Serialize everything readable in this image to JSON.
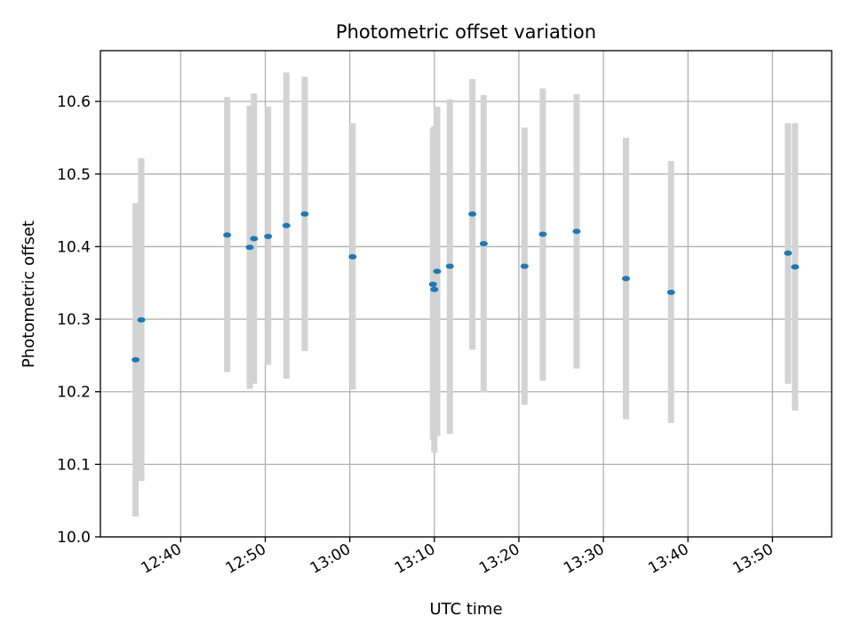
{
  "chart_data": {
    "type": "scatter",
    "title": "Photometric offset variation",
    "xlabel": "UTC time",
    "ylabel": "Photometric offset",
    "xlim": [
      "12:30:30",
      "13:57:00"
    ],
    "ylim": [
      10.0,
      10.67
    ],
    "x_ticks": [
      "12:40",
      "12:50",
      "13:00",
      "13:10",
      "13:20",
      "13:30",
      "13:40",
      "13:50"
    ],
    "y_ticks": [
      "10.0",
      "10.1",
      "10.2",
      "10.3",
      "10.4",
      "10.5",
      "10.6"
    ],
    "grid": true,
    "marker_color": "#1f77b4",
    "errorbar_color": "#d3d3d3",
    "points": [
      {
        "x": "12:34:40",
        "y": 10.244,
        "ylow": 10.028,
        "yhigh": 10.46
      },
      {
        "x": "12:35:20",
        "y": 10.299,
        "ylow": 10.077,
        "yhigh": 10.522
      },
      {
        "x": "12:45:30",
        "y": 10.416,
        "ylow": 10.227,
        "yhigh": 10.606
      },
      {
        "x": "12:48:10",
        "y": 10.399,
        "ylow": 10.204,
        "yhigh": 10.594
      },
      {
        "x": "12:48:40",
        "y": 10.411,
        "ylow": 10.211,
        "yhigh": 10.611
      },
      {
        "x": "12:50:20",
        "y": 10.414,
        "ylow": 10.237,
        "yhigh": 10.593
      },
      {
        "x": "12:52:30",
        "y": 10.429,
        "ylow": 10.218,
        "yhigh": 10.64
      },
      {
        "x": "12:54:40",
        "y": 10.445,
        "ylow": 10.256,
        "yhigh": 10.634
      },
      {
        "x": "13:00:20",
        "y": 10.386,
        "ylow": 10.203,
        "yhigh": 10.57
      },
      {
        "x": "13:09:50",
        "y": 10.348,
        "ylow": 10.134,
        "yhigh": 10.563
      },
      {
        "x": "13:10:00",
        "y": 10.341,
        "ylow": 10.116,
        "yhigh": 10.566
      },
      {
        "x": "13:10:20",
        "y": 10.366,
        "ylow": 10.139,
        "yhigh": 10.593
      },
      {
        "x": "13:11:50",
        "y": 10.373,
        "ylow": 10.142,
        "yhigh": 10.603
      },
      {
        "x": "13:14:30",
        "y": 10.445,
        "ylow": 10.258,
        "yhigh": 10.631
      },
      {
        "x": "13:15:50",
        "y": 10.404,
        "ylow": 10.199,
        "yhigh": 10.609
      },
      {
        "x": "13:20:40",
        "y": 10.373,
        "ylow": 10.182,
        "yhigh": 10.564
      },
      {
        "x": "13:22:50",
        "y": 10.417,
        "ylow": 10.215,
        "yhigh": 10.618
      },
      {
        "x": "13:26:50",
        "y": 10.421,
        "ylow": 10.232,
        "yhigh": 10.61
      },
      {
        "x": "13:32:40",
        "y": 10.356,
        "ylow": 10.162,
        "yhigh": 10.55
      },
      {
        "x": "13:38:00",
        "y": 10.337,
        "ylow": 10.157,
        "yhigh": 10.518
      },
      {
        "x": "13:51:50",
        "y": 10.391,
        "ylow": 10.211,
        "yhigh": 10.57
      },
      {
        "x": "13:52:40",
        "y": 10.372,
        "ylow": 10.174,
        "yhigh": 10.57
      }
    ]
  }
}
